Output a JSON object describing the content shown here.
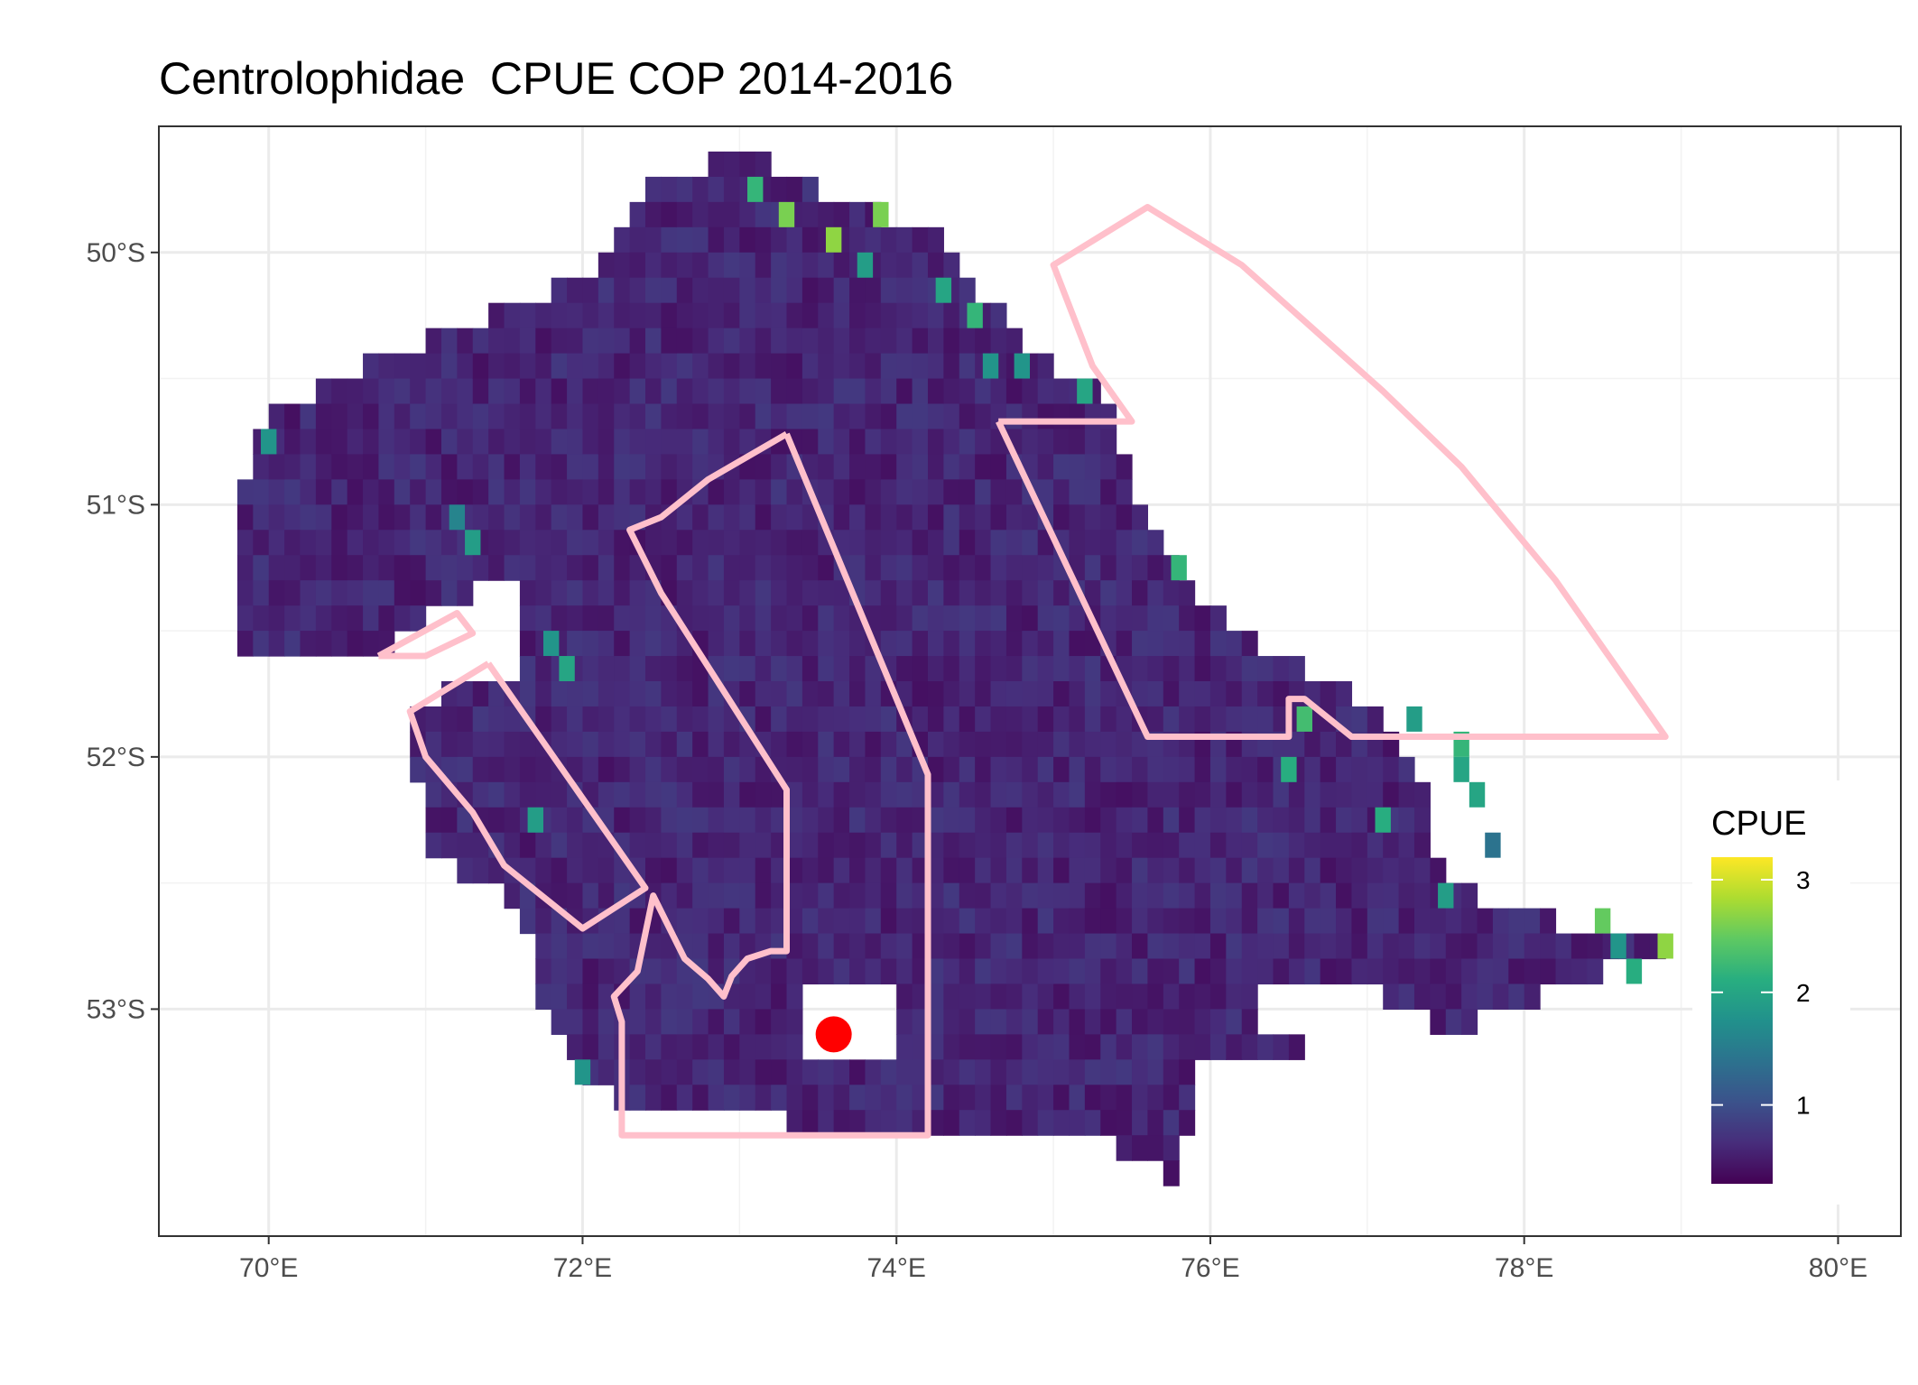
{
  "chart_data": {
    "type": "heatmap",
    "title": "Centrolophidae  CPUE COP 2014-2016",
    "xlabel": "",
    "ylabel": "",
    "x_ticks": [
      "70°E",
      "72°E",
      "74°E",
      "76°E",
      "78°E",
      "80°E"
    ],
    "y_ticks": [
      "50°S",
      "51°S",
      "52°S",
      "53°S"
    ],
    "x_tick_values": [
      70,
      72,
      74,
      76,
      78,
      80
    ],
    "y_tick_values": [
      -50,
      -51,
      -52,
      -53
    ],
    "xlim": [
      69.3,
      80.4
    ],
    "ylim": [
      -53.9,
      -49.5
    ],
    "grid": true,
    "colormap": "viridis",
    "color_range": [
      0.3,
      3.2
    ],
    "cell_size_deg": {
      "lon": 0.1,
      "lat": 0.1
    },
    "background_cpue": 0.6,
    "highlight_cells": [
      {
        "lon": 73.1,
        "lat": -49.75,
        "cpue": 2.2
      },
      {
        "lon": 73.3,
        "lat": -49.85,
        "cpue": 2.6
      },
      {
        "lon": 73.9,
        "lat": -49.85,
        "cpue": 2.6
      },
      {
        "lon": 73.6,
        "lat": -49.95,
        "cpue": 2.7
      },
      {
        "lon": 73.8,
        "lat": -50.05,
        "cpue": 1.9
      },
      {
        "lon": 74.3,
        "lat": -50.15,
        "cpue": 2.0
      },
      {
        "lon": 74.5,
        "lat": -50.25,
        "cpue": 2.2
      },
      {
        "lon": 74.6,
        "lat": -50.45,
        "cpue": 1.8
      },
      {
        "lon": 74.8,
        "lat": -50.45,
        "cpue": 1.8
      },
      {
        "lon": 75.2,
        "lat": -50.55,
        "cpue": 2.0
      },
      {
        "lon": 70.0,
        "lat": -50.75,
        "cpue": 1.8
      },
      {
        "lon": 71.2,
        "lat": -51.05,
        "cpue": 1.6
      },
      {
        "lon": 71.3,
        "lat": -51.15,
        "cpue": 1.9
      },
      {
        "lon": 75.8,
        "lat": -51.25,
        "cpue": 2.2
      },
      {
        "lon": 71.8,
        "lat": -51.55,
        "cpue": 1.8
      },
      {
        "lon": 71.9,
        "lat": -51.65,
        "cpue": 2.0
      },
      {
        "lon": 76.6,
        "lat": -51.85,
        "cpue": 2.3
      },
      {
        "lon": 77.3,
        "lat": -51.85,
        "cpue": 1.9
      },
      {
        "lon": 77.6,
        "lat": -51.95,
        "cpue": 2.2
      },
      {
        "lon": 77.6,
        "lat": -52.05,
        "cpue": 2.0
      },
      {
        "lon": 76.5,
        "lat": -52.05,
        "cpue": 2.1
      },
      {
        "lon": 77.7,
        "lat": -52.15,
        "cpue": 2.0
      },
      {
        "lon": 71.7,
        "lat": -52.25,
        "cpue": 1.9
      },
      {
        "lon": 77.1,
        "lat": -52.25,
        "cpue": 2.1
      },
      {
        "lon": 77.8,
        "lat": -52.35,
        "cpue": 1.4
      },
      {
        "lon": 77.5,
        "lat": -52.55,
        "cpue": 1.9
      },
      {
        "lon": 78.5,
        "lat": -52.65,
        "cpue": 2.5
      },
      {
        "lon": 78.6,
        "lat": -52.75,
        "cpue": 1.8
      },
      {
        "lon": 78.9,
        "lat": -52.75,
        "cpue": 2.7
      },
      {
        "lon": 78.7,
        "lat": -52.85,
        "cpue": 2.1
      },
      {
        "lon": 72.0,
        "lat": -53.25,
        "cpue": 1.8
      }
    ],
    "overlays": [
      {
        "type": "polygon",
        "color": "#ffc0cb",
        "points": [
          [
            73.3,
            -50.72
          ],
          [
            72.8,
            -50.9
          ],
          [
            72.5,
            -51.05
          ],
          [
            72.3,
            -51.1
          ],
          [
            72.5,
            -51.35
          ],
          [
            73.3,
            -52.13
          ],
          [
            73.3,
            -52.77
          ],
          [
            73.2,
            -52.77
          ],
          [
            73.05,
            -52.8
          ],
          [
            72.95,
            -52.87
          ],
          [
            72.9,
            -52.95
          ],
          [
            72.8,
            -52.88
          ],
          [
            72.65,
            -52.8
          ],
          [
            72.45,
            -52.55
          ],
          [
            72.35,
            -52.85
          ],
          [
            72.2,
            -52.95
          ],
          [
            72.25,
            -53.05
          ],
          [
            72.25,
            -53.5
          ],
          [
            74.2,
            -53.5
          ],
          [
            74.2,
            -52.07
          ],
          [
            73.3,
            -50.72
          ]
        ]
      },
      {
        "type": "polygon",
        "color": "#ffc0cb",
        "points": [
          [
            74.65,
            -50.67
          ],
          [
            75.5,
            -50.67
          ],
          [
            75.25,
            -50.45
          ],
          [
            75.0,
            -50.05
          ],
          [
            75.6,
            -49.82
          ],
          [
            76.2,
            -50.05
          ],
          [
            77.1,
            -50.55
          ],
          [
            77.6,
            -50.85
          ],
          [
            78.2,
            -51.3
          ],
          [
            78.9,
            -51.92
          ],
          [
            76.9,
            -51.92
          ],
          [
            76.6,
            -51.77
          ],
          [
            76.5,
            -51.77
          ],
          [
            76.5,
            -51.92
          ],
          [
            75.6,
            -51.92
          ],
          [
            74.65,
            -50.67
          ]
        ]
      },
      {
        "type": "polygon",
        "color": "#ffc0cb",
        "points": [
          [
            71.4,
            -51.63
          ],
          [
            70.9,
            -51.82
          ],
          [
            71.0,
            -52.0
          ],
          [
            71.3,
            -52.22
          ],
          [
            71.5,
            -52.43
          ],
          [
            72.0,
            -52.68
          ],
          [
            72.4,
            -52.52
          ],
          [
            71.4,
            -51.63
          ]
        ]
      },
      {
        "type": "polygon",
        "color": "#ffc0cb",
        "points": [
          [
            70.7,
            -51.6
          ],
          [
            71.2,
            -51.43
          ],
          [
            71.3,
            -51.51
          ],
          [
            71.0,
            -51.6
          ],
          [
            70.7,
            -51.6
          ]
        ]
      }
    ],
    "points": [
      {
        "lon": 73.6,
        "lat": -53.1,
        "color": "#ff0000"
      }
    ],
    "legend": {
      "title": "CPUE",
      "ticks": [
        "1",
        "2",
        "3"
      ],
      "tick_values": [
        1,
        2,
        3
      ],
      "position": "right"
    }
  }
}
